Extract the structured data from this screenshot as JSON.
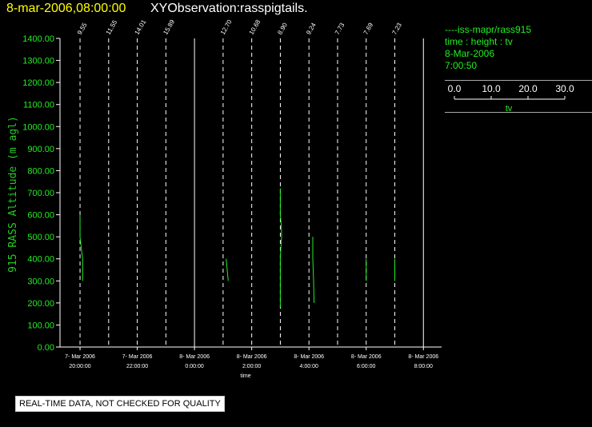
{
  "header": {
    "date_title": "8-mar-2006,08:00:00",
    "obs_title": "XYObservation:rasspigtails."
  },
  "legend": {
    "series_line": "----iss-mapr/rass915",
    "vars": "time : height : tv",
    "date": "8-Mar-2006",
    "time": "7:00:50",
    "scale_ticks": [
      "0.0",
      "10.0",
      "20.0",
      "30.0"
    ],
    "scale_label": "tv"
  },
  "footer": {
    "note": "REAL-TIME DATA, NOT CHECKED FOR QUALITY"
  },
  "colors": {
    "data": "#22ee22",
    "axis_label": "#22cc22",
    "title_date": "#ffff00",
    "axes": "#ffffff"
  },
  "chart_data": {
    "type": "line",
    "ylabel": "915 RASS Altitude (m agl)",
    "xlabel": "time",
    "ylim": [
      0,
      1400
    ],
    "y_ticks": [
      "0.00",
      "100.00",
      "200.00",
      "300.00",
      "400.00",
      "500.00",
      "600.00",
      "700.00",
      "800.00",
      "900.00",
      "1000.00",
      "1100.00",
      "1200.00",
      "1300.00",
      "1400.00"
    ],
    "x_ticks": [
      {
        "hour": 19.0,
        "date": "7- Mar 2006",
        "time": "20:00:00"
      },
      {
        "hour": 21.0,
        "date": "7- Mar 2006",
        "time": "22:00:00"
      },
      {
        "hour": 23.0,
        "date": "8- Mar 2006",
        "time": "0:00:00"
      },
      {
        "hour": 25.0,
        "date": "8- Mar 2006",
        "time": "2:00:00"
      },
      {
        "hour": 27.0,
        "date": "8- Mar 2006",
        "time": "4:00:00"
      },
      {
        "hour": 29.0,
        "date": "8- Mar 2006",
        "time": "6:00:00"
      },
      {
        "hour": 31.0,
        "date": "8- Mar 2006",
        "time": "8:00:00"
      }
    ],
    "xlim": [
      18.3,
      31.3
    ],
    "profiles": [
      {
        "base_hour": 19.0,
        "label": "9.55",
        "points": [
          [
            0.0,
            600
          ],
          [
            0.0,
            500
          ],
          [
            0.25,
            450
          ],
          [
            0.5,
            400
          ],
          [
            0.5,
            300
          ]
        ]
      },
      {
        "base_hour": 20.0,
        "label": "11.55",
        "points": []
      },
      {
        "base_hour": 21.0,
        "label": "14.01",
        "points": []
      },
      {
        "base_hour": 22.0,
        "label": "15.89",
        "points": []
      },
      {
        "base_hour": 24.0,
        "label": "12.70",
        "points": [
          [
            0.6,
            400
          ],
          [
            1.0,
            300
          ]
        ]
      },
      {
        "base_hour": 25.0,
        "label": "10.68",
        "points": []
      },
      {
        "base_hour": 26.0,
        "label": "8.90",
        "points": [
          [
            0.0,
            720
          ],
          [
            0.0,
            600
          ],
          [
            0.2,
            550
          ],
          [
            0.25,
            500
          ],
          [
            0.0,
            410
          ],
          [
            0.0,
            380
          ],
          [
            0.0,
            180
          ]
        ]
      },
      {
        "base_hour": 27.0,
        "label": "9.24",
        "points": [
          [
            0.75,
            500
          ],
          [
            0.75,
            400
          ],
          [
            0.9,
            300
          ],
          [
            1.0,
            200
          ]
        ]
      },
      {
        "base_hour": 28.0,
        "label": "7.73",
        "points": []
      },
      {
        "base_hour": 29.0,
        "label": "7.69",
        "points": [
          [
            0.0,
            400
          ],
          [
            0.0,
            300
          ]
        ]
      },
      {
        "base_hour": 30.0,
        "label": "7.23",
        "points": [
          [
            0.0,
            400
          ],
          [
            0.0,
            300
          ],
          [
            0.0,
            380
          ]
        ]
      }
    ],
    "line_style": {
      "dashed_hours": [
        19.0,
        20.0,
        21.0,
        22.0,
        24.0,
        25.0,
        26.0,
        27.0,
        28.0,
        29.0,
        30.0
      ],
      "solid_hours": [
        23.0,
        31.0
      ]
    }
  }
}
